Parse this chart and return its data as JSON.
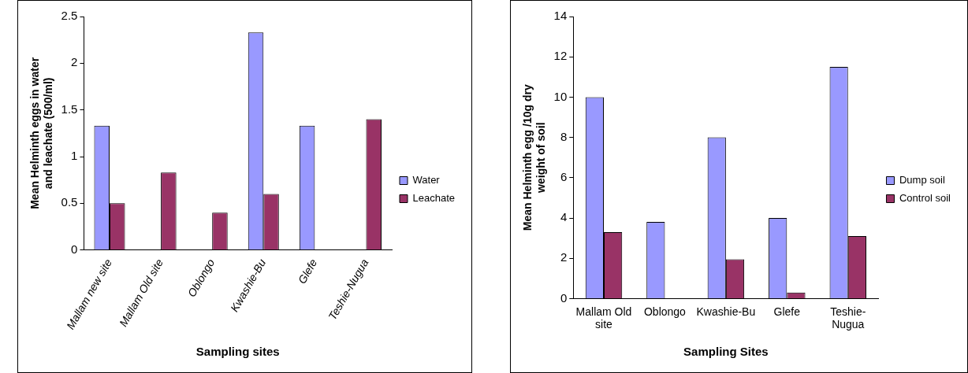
{
  "chart_data": [
    {
      "type": "bar",
      "xlabel": "Sampling sites",
      "ylabel": "Mean Helminth eggs in water and leachate (500/ml)",
      "categories": [
        "Mallam new site",
        "Mallam Old site",
        "Oblongo",
        "Kwashie-Bu",
        "Glefe",
        "Teshie-Nugua"
      ],
      "series": [
        {
          "name": "Water",
          "color": "#9999ff",
          "values": [
            1.33,
            null,
            null,
            2.33,
            1.33,
            null
          ]
        },
        {
          "name": "Leachate",
          "color": "#993366",
          "values": [
            0.5,
            0.83,
            0.4,
            0.6,
            null,
            1.4
          ]
        }
      ],
      "ylim": [
        0,
        2.5
      ],
      "yticks": [
        0,
        0.5,
        1,
        1.5,
        2,
        2.5
      ],
      "grid": false,
      "legend": "right"
    },
    {
      "type": "bar",
      "xlabel": "Sampling Sites",
      "ylabel": "Mean Helminth egg /10g dry weight of soil",
      "categories": [
        "Mallam Old site",
        "Oblongo",
        "Kwashie-Bu",
        "Glefe",
        "Teshie-Nugua"
      ],
      "series": [
        {
          "name": "Dump soil",
          "color": "#9999ff",
          "values": [
            10,
            3.8,
            8,
            4,
            11.5
          ]
        },
        {
          "name": "Control soil",
          "color": "#993366",
          "values": [
            3.3,
            null,
            1.95,
            0.3,
            3.1
          ]
        }
      ],
      "ylim": [
        0,
        14
      ],
      "yticks": [
        0,
        2,
        4,
        6,
        8,
        10,
        12,
        14
      ],
      "grid": false,
      "legend": "right"
    }
  ]
}
